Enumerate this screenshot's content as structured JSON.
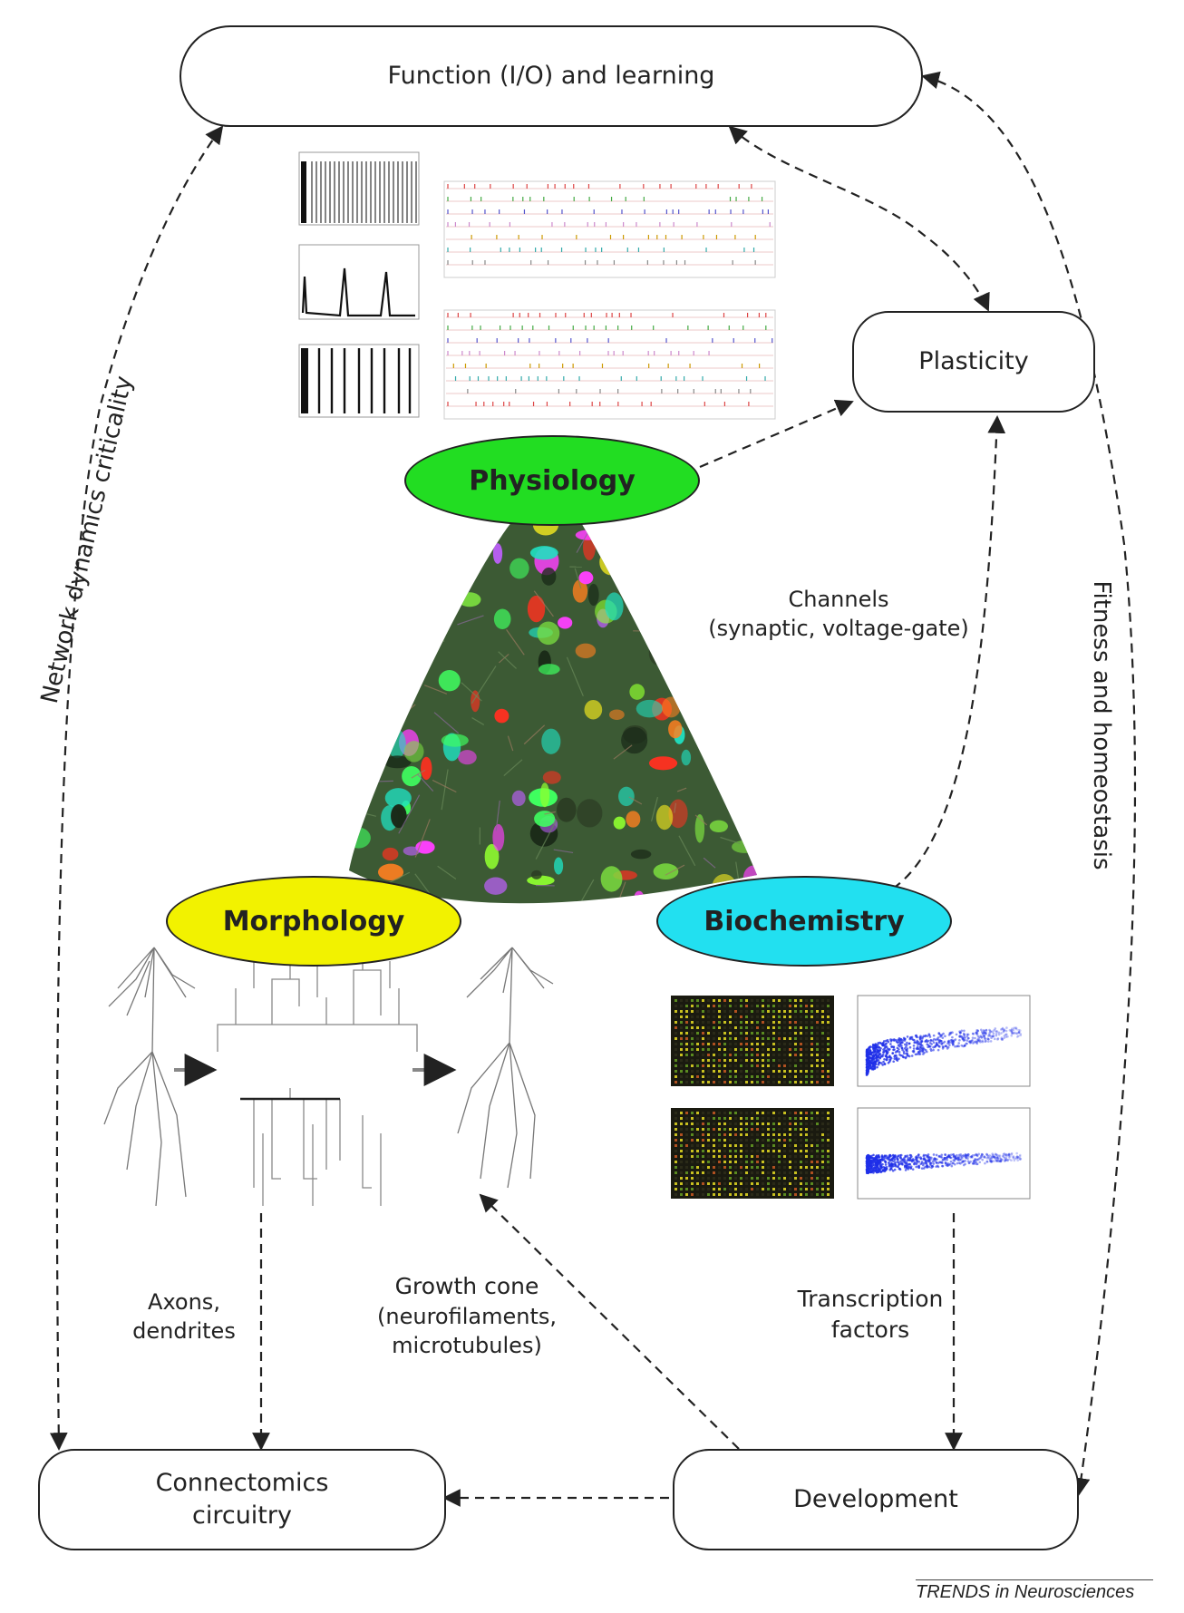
{
  "nodes": {
    "function": "Function (I/O) and learning",
    "plasticity": "Plasticity",
    "physiology": "Physiology",
    "morphology": "Morphology",
    "biochemistry": "Biochemistry",
    "connectomics_line1": "Connectomics",
    "connectomics_line2": "circuitry",
    "development": "Development"
  },
  "edge_labels": {
    "network_dynamics": "Network dynamics criticality",
    "fitness": "Fitness and homeostasis",
    "channels_line1": "Channels",
    "channels_line2": "(synaptic, voltage-gate)",
    "axons_line1": "Axons,",
    "axons_line2": "dendrites",
    "growth_line1": "Growth cone",
    "growth_line2": "(neurofilaments,",
    "growth_line3": "microtubules)",
    "transcription_line1": "Transcription",
    "transcription_line2": "factors"
  },
  "footer": "TRENDS in Neurosciences",
  "colors": {
    "physiology": "#22dd22",
    "morphology": "#f2f200",
    "biochemistry": "#22e0f0",
    "tissue": "#3c5a34"
  }
}
